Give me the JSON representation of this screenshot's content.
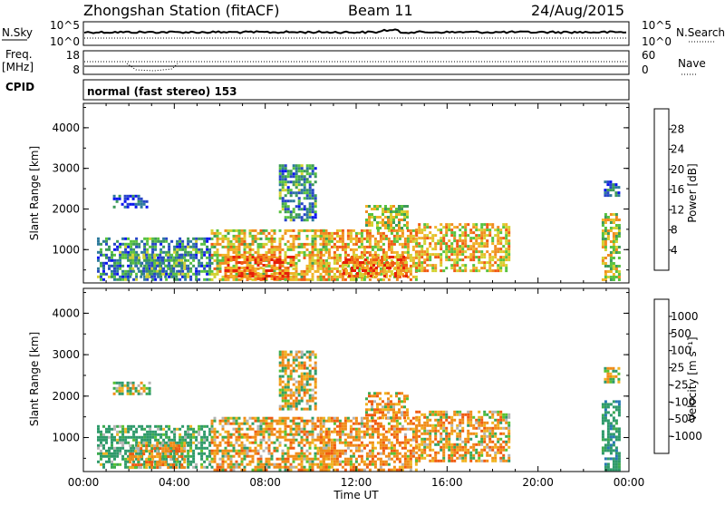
{
  "header": {
    "station": "Zhongshan Station (fitACF)",
    "beam": "Beam 11",
    "date": "24/Aug/2015"
  },
  "panels": {
    "nsky": {
      "label": "N.Sky",
      "left_ticks": [
        "10^5",
        "10^0"
      ],
      "right_ticks": [
        "10^5",
        "10^0"
      ],
      "right_label": "N.Search"
    },
    "freq": {
      "label_line1": "Freq.",
      "label_line2": "[MHz]",
      "left_ticks": [
        "18",
        "8"
      ],
      "right_ticks": [
        "60",
        "0"
      ],
      "right_label": "Nave"
    },
    "cpid": {
      "label": "CPID",
      "mode_text": "normal (fast stereo) 153"
    }
  },
  "chart_data": [
    {
      "type": "heatmap",
      "name": "power",
      "ylabel": "Slant Range [km]",
      "xlabel": "",
      "x_ticks": [
        "00:00",
        "04:00",
        "08:00",
        "12:00",
        "16:00",
        "20:00",
        "00:00"
      ],
      "y_ticks": [
        "1000",
        "2000",
        "3000",
        "4000"
      ],
      "xlim": [
        0,
        24
      ],
      "ylim": [
        180,
        4600
      ],
      "colorbar": {
        "label": "Power [dB]",
        "ticks": [
          "4",
          "8",
          "12",
          "16",
          "20",
          "24",
          "28"
        ],
        "colors": [
          "#0a14f0",
          "#2846c8",
          "#2e7a9c",
          "#3d9a5a",
          "#58c240",
          "#d2d232",
          "#f0b428",
          "#f08c20",
          "#f05a14",
          "#e61e0a"
        ]
      },
      "echo_regions": [
        {
          "t0": 0.6,
          "t1": 5.6,
          "r0": 250,
          "r1": 1300,
          "v": 11
        },
        {
          "t0": 1.3,
          "t1": 2.9,
          "r0": 2050,
          "r1": 2350,
          "v": 6
        },
        {
          "t0": 2.0,
          "t1": 4.5,
          "r0": 300,
          "r1": 900,
          "v": 12
        },
        {
          "t0": 5.6,
          "t1": 10.8,
          "r0": 250,
          "r1": 1500,
          "v": 20
        },
        {
          "t0": 6.2,
          "t1": 9.2,
          "r0": 300,
          "r1": 850,
          "v": 27
        },
        {
          "t0": 8.6,
          "t1": 10.2,
          "r0": 1700,
          "r1": 3100,
          "v": 11
        },
        {
          "t0": 10.4,
          "t1": 14.6,
          "r0": 250,
          "r1": 1500,
          "v": 22
        },
        {
          "t0": 11.4,
          "t1": 14.2,
          "r0": 350,
          "r1": 850,
          "v": 26
        },
        {
          "t0": 12.4,
          "t1": 14.2,
          "r0": 1500,
          "r1": 2100,
          "v": 18
        },
        {
          "t0": 14.6,
          "t1": 18.7,
          "r0": 450,
          "r1": 1650,
          "v": 21
        },
        {
          "t0": 22.8,
          "t1": 23.6,
          "r0": 250,
          "r1": 1900,
          "v": 19
        },
        {
          "t0": 22.9,
          "t1": 23.5,
          "r0": 2350,
          "r1": 2700,
          "v": 8
        }
      ]
    },
    {
      "type": "heatmap",
      "name": "velocity",
      "ylabel": "Slant Range [km]",
      "xlabel": "Time UT",
      "x_ticks": [
        "00:00",
        "04:00",
        "08:00",
        "12:00",
        "16:00",
        "20:00",
        "00:00"
      ],
      "y_ticks": [
        "1000",
        "2000",
        "3000",
        "4000"
      ],
      "xlim": [
        0,
        24
      ],
      "ylim": [
        180,
        4600
      ],
      "colorbar": {
        "label": "Velocity [m s⁻¹]",
        "ticks": [
          "1000",
          "500",
          "100",
          "25",
          "-25",
          "-100",
          "-500",
          "-1000"
        ],
        "colors": [
          "#1e3cc8",
          "#2878b4",
          "#2e9a6a",
          "#3caa50",
          "#58c232",
          "#b4b4b4",
          "#f0b420",
          "#f08c18",
          "#f05a10",
          "#e61e0a"
        ]
      },
      "echo_regions": [
        {
          "t0": 0.6,
          "t1": 5.6,
          "r0": 250,
          "r1": 1300,
          "v": 200
        },
        {
          "t0": 1.3,
          "t1": 2.9,
          "r0": 2050,
          "r1": 2350,
          "v": 0
        },
        {
          "t0": 2.0,
          "t1": 4.5,
          "r0": 300,
          "r1": 900,
          "v": -150
        },
        {
          "t0": 5.6,
          "t1": 10.8,
          "r0": 250,
          "r1": 1500,
          "v": -120
        },
        {
          "t0": 8.6,
          "t1": 10.2,
          "r0": 1700,
          "r1": 3100,
          "v": -60
        },
        {
          "t0": 10.4,
          "t1": 14.6,
          "r0": 250,
          "r1": 1500,
          "v": -180
        },
        {
          "t0": 12.4,
          "t1": 14.2,
          "r0": 1500,
          "r1": 2100,
          "v": -150
        },
        {
          "t0": 14.6,
          "t1": 18.7,
          "r0": 450,
          "r1": 1650,
          "v": -140
        },
        {
          "t0": 22.8,
          "t1": 23.6,
          "r0": 250,
          "r1": 1900,
          "v": 300
        },
        {
          "t0": 22.9,
          "t1": 23.5,
          "r0": 2350,
          "r1": 2700,
          "v": 0
        }
      ]
    }
  ]
}
